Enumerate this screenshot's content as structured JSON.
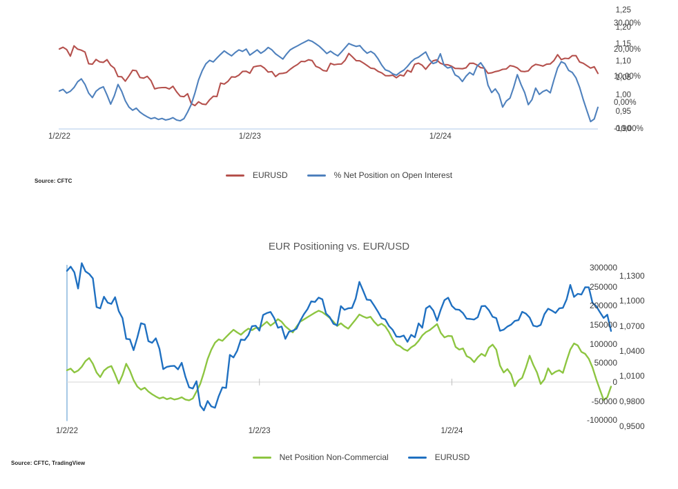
{
  "chart_data": [
    {
      "type": "line",
      "title": "",
      "source": "Source: CFTC",
      "x_tick_labels": [
        "1/2/22",
        "1/2/23",
        "1/2/24"
      ],
      "x_tick_indices": [
        0,
        52,
        104
      ],
      "legend_position": "bottom-center",
      "grid": "baseline-only",
      "axes": {
        "left": {
          "tick_labels": [
            "1,25",
            "1,20",
            "1,15",
            "1,10",
            "1,05",
            "1,00",
            "0,95",
            "0,90"
          ],
          "ticks": [
            1.25,
            1.2,
            1.15,
            1.1,
            1.05,
            1.0,
            0.95,
            0.9
          ],
          "range": [
            0.9,
            1.25
          ]
        },
        "right": {
          "tick_labels": [
            "30,00%",
            "20,00%",
            "10,00%",
            "0,00%",
            "-10,00%"
          ],
          "ticks": [
            30,
            20,
            10,
            0,
            -10
          ],
          "range": [
            -10,
            30
          ]
        }
      },
      "series": [
        {
          "name": "EURUSD",
          "axis": "left",
          "color": "#B5514D",
          "values": [
            1.136,
            1.1411,
            1.1343,
            1.1149,
            1.1452,
            1.1354,
            1.1323,
            1.127,
            1.0926,
            1.0911,
            1.1051,
            1.0979,
            1.0965,
            1.1045,
            1.0878,
            1.0795,
            1.0546,
            1.054,
            1.0411,
            1.0563,
            1.0733,
            1.0719,
            1.0519,
            1.0499,
            1.0553,
            1.0426,
            1.0184,
            1.0211,
            1.022,
            1.0223,
            1.0181,
            1.026,
            1.0094,
            0.9966,
            0.9952,
            1.0039,
            0.9748,
            0.969,
            0.9802,
            0.9737,
            0.9721,
            0.986,
            0.9965,
            0.9959,
            1.0354,
            1.0324,
            1.0405,
            1.0538,
            1.0531,
            1.059,
            1.0698,
            1.0703,
            1.0644,
            1.0832,
            1.0855,
            1.0868,
            1.0794,
            1.0679,
            1.0694,
            1.0546,
            1.0632,
            1.0643,
            1.0667,
            1.076,
            1.084,
            1.0902,
            1.0995,
            1.0988,
            1.104,
            1.1019,
            1.0849,
            1.0805,
            1.0726,
            1.0707,
            1.0938,
            1.0894,
            1.0912,
            1.0916,
            1.1027,
            1.1228,
            1.1126,
            1.1016,
            1.101,
            1.0945,
            1.0873,
            1.0795,
            1.0779,
            1.07,
            1.0654,
            1.0573,
            1.057,
            1.0586,
            1.0511,
            1.0594,
            1.0565,
            1.0731,
            1.0679,
            1.0911,
            1.0941,
            1.0884,
            1.0763,
            1.0896,
            1.101,
            1.1039,
            1.0941,
            1.0899,
            1.0894,
            1.0854,
            1.0787,
            1.0784,
            1.0777,
            1.0805,
            1.0937,
            1.094,
            1.0889,
            1.081,
            1.0794,
            1.0643,
            1.0656,
            1.0693,
            1.0716,
            1.0761,
            1.0771,
            1.087,
            1.0848,
            1.0801,
            1.0704,
            1.0693,
            1.0713,
            1.0841,
            1.0907,
            1.0885,
            1.0856,
            1.0911,
            1.0918,
            1.1019,
            1.1192,
            1.1048,
            1.1085,
            1.1076,
            1.1164,
            1.1163,
            1.0976,
            1.0937,
            1.0866,
            1.0796,
            1.0835,
            1.064
          ]
        },
        {
          "name": "% Net Position on Open Interest",
          "axis": "right",
          "color": "#4F81BD",
          "values": [
            4.4,
            5.0,
            3.6,
            4.3,
            5.7,
            7.9,
            9.0,
            6.9,
            3.6,
            1.9,
            4.3,
            5.4,
            6.0,
            2.9,
            -0.6,
            2.6,
            6.9,
            4.3,
            0.7,
            -1.7,
            -2.9,
            -2.1,
            -3.6,
            -4.6,
            -5.4,
            -6.1,
            -5.7,
            -6.4,
            -6.0,
            -6.6,
            -6.3,
            -5.7,
            -6.6,
            -6.9,
            -6.1,
            -3.6,
            -0.7,
            3.6,
            8.6,
            12.1,
            14.7,
            16.0,
            15.4,
            16.9,
            18.3,
            19.6,
            18.6,
            17.7,
            19.0,
            20.0,
            19.4,
            20.3,
            18.0,
            19.0,
            20.0,
            18.7,
            19.6,
            20.9,
            20.0,
            18.5,
            17.5,
            16.5,
            18.4,
            20.0,
            20.8,
            21.5,
            22.3,
            23.0,
            23.7,
            23.2,
            22.3,
            21.3,
            20.0,
            18.6,
            19.5,
            18.5,
            17.7,
            19.2,
            20.8,
            22.4,
            21.8,
            21.3,
            21.6,
            20.0,
            18.7,
            19.4,
            18.5,
            16.6,
            14.2,
            12.4,
            11.9,
            10.9,
            10.4,
            11.5,
            12.3,
            13.7,
            15.4,
            16.6,
            17.2,
            18.2,
            19.2,
            16.3,
            14.8,
            15.3,
            18.5,
            14.2,
            13.1,
            13.5,
            10.5,
            9.7,
            8.0,
            10.0,
            11.4,
            10.5,
            13.8,
            15.1,
            13.1,
            6.6,
            3.8,
            5.2,
            3.1,
            -1.7,
            0.6,
            1.7,
            5.8,
            10.6,
            6.9,
            3.8,
            -0.8,
            1.1,
            5.5,
            3.1,
            4.2,
            4.8,
            3.7,
            8.6,
            13.1,
            15.5,
            14.8,
            12.2,
            11.4,
            9.4,
            5.8,
            1.1,
            -3.1,
            -7.2,
            -6.2,
            -1.8
          ]
        }
      ]
    },
    {
      "type": "line",
      "title": "EUR Positioning vs. EUR/USD",
      "source": "Source: CFTC, TradingView",
      "x_tick_labels": [
        "1/2/22",
        "1/2/23",
        "1/2/24"
      ],
      "x_tick_indices": [
        0,
        52,
        104
      ],
      "legend_position": "bottom-center",
      "grid": "zero-line-only",
      "axes": {
        "left": {
          "tick_labels": [
            "300000",
            "250000",
            "200000",
            "150000",
            "100000",
            "50000",
            "0",
            "-50000",
            "-100000"
          ],
          "ticks": [
            300000,
            250000,
            200000,
            150000,
            100000,
            50000,
            0,
            -50000,
            -100000
          ],
          "range": [
            -100000,
            300000
          ]
        },
        "right": {
          "tick_labels": [
            "1,1300",
            "1,1000",
            "1,0700",
            "1,0400",
            "1,0100",
            "0,9800",
            "0,9500"
          ],
          "ticks": [
            1.13,
            1.1,
            1.07,
            1.04,
            1.01,
            0.98,
            0.95
          ],
          "range": [
            0.95,
            1.13
          ]
        }
      },
      "series": [
        {
          "name": "Net Position Non-Commercial",
          "axis": "left",
          "color": "#8DC541",
          "values": [
            31000,
            35000,
            25000,
            30000,
            40000,
            55000,
            63000,
            48000,
            25000,
            13000,
            30000,
            38000,
            42000,
            20000,
            -4000,
            18000,
            48000,
            30000,
            5000,
            -12000,
            -20000,
            -15000,
            -25000,
            -32000,
            -38000,
            -43000,
            -40000,
            -45000,
            -42000,
            -46000,
            -44000,
            -40000,
            -46000,
            -48000,
            -43000,
            -25000,
            -5000,
            25000,
            60000,
            85000,
            103000,
            112000,
            108000,
            118000,
            128000,
            137000,
            130000,
            124000,
            133000,
            140000,
            136000,
            142000,
            142000,
            150000,
            158000,
            148000,
            155000,
            165000,
            158000,
            146000,
            138000,
            130000,
            145000,
            158000,
            164000,
            170000,
            176000,
            182000,
            187000,
            183000,
            176000,
            168000,
            158000,
            147000,
            154000,
            146000,
            140000,
            152000,
            164000,
            177000,
            172000,
            168000,
            171000,
            158000,
            148000,
            153000,
            146000,
            131000,
            112000,
            98000,
            94000,
            86000,
            82000,
            91000,
            97000,
            108000,
            122000,
            131000,
            136000,
            144000,
            152000,
            129000,
            117000,
            121000,
            120000,
            92000,
            85000,
            88000,
            68000,
            63000,
            52000,
            65000,
            74000,
            68000,
            90000,
            98000,
            85000,
            43000,
            25000,
            34000,
            20000,
            -11000,
            4000,
            11000,
            38000,
            69000,
            45000,
            25000,
            -5000,
            7000,
            36000,
            20000,
            27000,
            31000,
            24000,
            56000,
            85000,
            101000,
            96000,
            79000,
            74000,
            61000,
            38000,
            7000,
            -20000,
            -47000,
            -40000,
            -12000
          ]
        },
        {
          "name": "EURUSD",
          "axis": "right",
          "color": "#1F70C1",
          "values": [
            1.136,
            1.1411,
            1.1343,
            1.1149,
            1.1452,
            1.1354,
            1.1323,
            1.127,
            1.0926,
            1.0911,
            1.1051,
            1.0979,
            1.0965,
            1.1045,
            1.0878,
            1.0795,
            1.0546,
            1.054,
            1.0411,
            1.0563,
            1.0733,
            1.0719,
            1.0519,
            1.0499,
            1.0553,
            1.0426,
            1.0184,
            1.0211,
            1.022,
            1.0223,
            1.0181,
            1.026,
            1.0094,
            0.9966,
            0.9952,
            1.0039,
            0.9748,
            0.969,
            0.9802,
            0.9737,
            0.9721,
            0.986,
            0.9965,
            0.9959,
            1.0354,
            1.0324,
            1.0405,
            1.0538,
            1.0531,
            1.059,
            1.0698,
            1.0703,
            1.0644,
            1.0832,
            1.0855,
            1.0868,
            1.0794,
            1.0679,
            1.0694,
            1.0546,
            1.0632,
            1.0643,
            1.0667,
            1.076,
            1.084,
            1.0902,
            1.0995,
            1.0988,
            1.104,
            1.1019,
            1.0849,
            1.0805,
            1.0726,
            1.0707,
            1.0938,
            1.0894,
            1.0912,
            1.0916,
            1.1027,
            1.1228,
            1.1126,
            1.1016,
            1.101,
            1.0945,
            1.0873,
            1.0795,
            1.0779,
            1.07,
            1.0654,
            1.0573,
            1.057,
            1.0586,
            1.0511,
            1.0594,
            1.0565,
            1.0731,
            1.0679,
            1.0911,
            1.0941,
            1.0884,
            1.0763,
            1.0896,
            1.101,
            1.1039,
            1.0941,
            1.0899,
            1.0894,
            1.0854,
            1.0787,
            1.0784,
            1.0777,
            1.0805,
            1.0937,
            1.094,
            1.0889,
            1.081,
            1.0794,
            1.0643,
            1.0656,
            1.0693,
            1.0716,
            1.0761,
            1.0771,
            1.087,
            1.0848,
            1.0801,
            1.0704,
            1.0693,
            1.0713,
            1.0841,
            1.0907,
            1.0885,
            1.0856,
            1.0911,
            1.0918,
            1.1019,
            1.1192,
            1.1048,
            1.1085,
            1.1076,
            1.1164,
            1.1163,
            1.0976,
            1.0937,
            1.0866,
            1.0796,
            1.0835,
            1.064
          ]
        }
      ]
    }
  ]
}
